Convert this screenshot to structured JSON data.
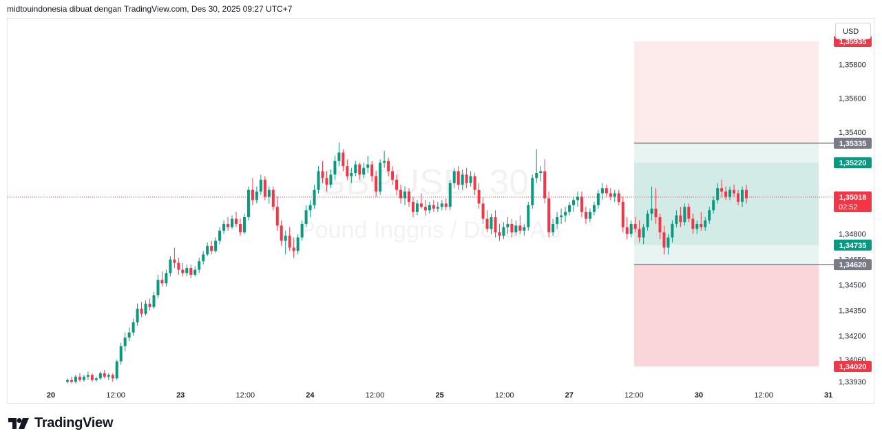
{
  "header": {
    "text": "midtouindonesia dibuat dengan TradingView.com, Des 30, 2025 09:27 UTC+7"
  },
  "currency": "USD",
  "brand": {
    "name": "TradingView"
  },
  "watermark": {
    "symbol": "GBPUSD, 30",
    "name": "Pound Inggris / Dollar AS"
  },
  "colors": {
    "up": "#089981",
    "down": "#f23645",
    "grid_border": "#e0e3eb",
    "stop_zone": "#fad6d9",
    "stop_zone_light": "#fdebec",
    "target_zone": "#d2ebe6",
    "target_zone_light": "#e8f4f1",
    "line_gray": "#434651",
    "gray_label": "#787b86"
  },
  "chart_data": {
    "type": "candlestick",
    "title": "",
    "xlabel": "",
    "ylabel": "",
    "ylim": [
      1.339,
      1.3601
    ],
    "x_ticks": [
      "20",
      "12:00",
      "23",
      "12:00",
      "24",
      "12:00",
      "25",
      "12:00",
      "27",
      "12:00",
      "30",
      "12:00",
      "31"
    ],
    "y_ticks": [
      "1,35800",
      "1,35600",
      "1,35400",
      "1,34800",
      "1,34650",
      "1,34500",
      "1,34350",
      "1,34200",
      "1,34060",
      "1,33930"
    ],
    "current_price": {
      "label": "1,35018",
      "value": 1.35018,
      "countdown": "02:52"
    },
    "price_labels": [
      {
        "label": "1,35935",
        "value": 1.35935,
        "style": "red"
      },
      {
        "label": "1,35335",
        "value": 1.35335,
        "style": "gray"
      },
      {
        "label": "1,35220",
        "value": 1.3522,
        "style": "green"
      },
      {
        "label": "1,34735",
        "value": 1.34735,
        "style": "green"
      },
      {
        "label": "1,34620",
        "value": 1.3462,
        "style": "gray"
      },
      {
        "label": "1,34020",
        "value": 1.3402,
        "style": "red"
      }
    ],
    "position_zone": {
      "start_tick_fraction": 9.0,
      "end_tick_fraction": 11.85,
      "top": 1.35935,
      "upper_line": 1.35335,
      "target_top": 1.3522,
      "target_bottom": 1.34735,
      "lower_line": 1.3462,
      "bottom": 1.3402
    },
    "candles": [
      [
        1.3393,
        1.3395,
        1.3392,
        1.3394
      ],
      [
        1.3394,
        1.3396,
        1.3392,
        1.3393
      ],
      [
        1.3393,
        1.3397,
        1.3392,
        1.3396
      ],
      [
        1.3396,
        1.3398,
        1.3393,
        1.3394
      ],
      [
        1.3394,
        1.3397,
        1.3393,
        1.3396
      ],
      [
        1.3396,
        1.3399,
        1.3394,
        1.3397
      ],
      [
        1.3397,
        1.3398,
        1.3393,
        1.3394
      ],
      [
        1.3394,
        1.3396,
        1.3393,
        1.3395
      ],
      [
        1.3395,
        1.3399,
        1.3394,
        1.3398
      ],
      [
        1.3398,
        1.34,
        1.3395,
        1.3396
      ],
      [
        1.3396,
        1.3398,
        1.3394,
        1.3397
      ],
      [
        1.3397,
        1.3398,
        1.3393,
        1.3395
      ],
      [
        1.3395,
        1.3406,
        1.3394,
        1.3405
      ],
      [
        1.3405,
        1.3416,
        1.3403,
        1.3414
      ],
      [
        1.3414,
        1.3422,
        1.3411,
        1.3419
      ],
      [
        1.3419,
        1.3425,
        1.3417,
        1.3422
      ],
      [
        1.3422,
        1.343,
        1.342,
        1.3428
      ],
      [
        1.3428,
        1.3439,
        1.3426,
        1.3436
      ],
      [
        1.3436,
        1.344,
        1.3431,
        1.3433
      ],
      [
        1.3433,
        1.3441,
        1.3432,
        1.3439
      ],
      [
        1.3439,
        1.3442,
        1.3435,
        1.3437
      ],
      [
        1.3437,
        1.3446,
        1.3436,
        1.3444
      ],
      [
        1.3444,
        1.3456,
        1.3442,
        1.3453
      ],
      [
        1.3453,
        1.3458,
        1.3449,
        1.3451
      ],
      [
        1.3451,
        1.3459,
        1.3449,
        1.3457
      ],
      [
        1.3457,
        1.3467,
        1.3455,
        1.3465
      ],
      [
        1.3465,
        1.3472,
        1.346,
        1.3463
      ],
      [
        1.3463,
        1.3466,
        1.3456,
        1.3459
      ],
      [
        1.3459,
        1.3463,
        1.3455,
        1.3457
      ],
      [
        1.3457,
        1.3462,
        1.3455,
        1.346
      ],
      [
        1.346,
        1.3462,
        1.3454,
        1.3456
      ],
      [
        1.3456,
        1.3461,
        1.3455,
        1.3459
      ],
      [
        1.3459,
        1.3466,
        1.3457,
        1.3464
      ],
      [
        1.3464,
        1.347,
        1.3462,
        1.3468
      ],
      [
        1.3468,
        1.3475,
        1.3467,
        1.3473
      ],
      [
        1.3473,
        1.3476,
        1.3468,
        1.347
      ],
      [
        1.347,
        1.3478,
        1.3469,
        1.3476
      ],
      [
        1.3476,
        1.3484,
        1.3474,
        1.3482
      ],
      [
        1.3482,
        1.3488,
        1.348,
        1.3486
      ],
      [
        1.3486,
        1.349,
        1.3482,
        1.3484
      ],
      [
        1.3484,
        1.3491,
        1.3483,
        1.3489
      ],
      [
        1.3489,
        1.3493,
        1.3484,
        1.3486
      ],
      [
        1.3486,
        1.3489,
        1.3479,
        1.3481
      ],
      [
        1.3481,
        1.3492,
        1.348,
        1.349
      ],
      [
        1.349,
        1.3508,
        1.3488,
        1.3506
      ],
      [
        1.3506,
        1.3513,
        1.3497,
        1.35
      ],
      [
        1.35,
        1.3508,
        1.3498,
        1.3505
      ],
      [
        1.3505,
        1.3515,
        1.3503,
        1.3512
      ],
      [
        1.3512,
        1.3514,
        1.35,
        1.3502
      ],
      [
        1.3502,
        1.3508,
        1.3498,
        1.3506
      ],
      [
        1.3506,
        1.3508,
        1.3494,
        1.3496
      ],
      [
        1.3496,
        1.3502,
        1.3482,
        1.3485
      ],
      [
        1.3485,
        1.3488,
        1.3473,
        1.3476
      ],
      [
        1.3476,
        1.3482,
        1.3468,
        1.3479
      ],
      [
        1.3479,
        1.3484,
        1.347,
        1.3472
      ],
      [
        1.3472,
        1.3478,
        1.3466,
        1.347
      ],
      [
        1.347,
        1.348,
        1.3468,
        1.3478
      ],
      [
        1.3478,
        1.3488,
        1.3476,
        1.3486
      ],
      [
        1.3486,
        1.3497,
        1.3484,
        1.3494
      ],
      [
        1.3494,
        1.35,
        1.349,
        1.3497
      ],
      [
        1.3497,
        1.3509,
        1.3495,
        1.3506
      ],
      [
        1.3506,
        1.352,
        1.3504,
        1.3517
      ],
      [
        1.3517,
        1.3523,
        1.351,
        1.3513
      ],
      [
        1.3513,
        1.3517,
        1.3505,
        1.3509
      ],
      [
        1.3509,
        1.3518,
        1.3507,
        1.3515
      ],
      [
        1.3515,
        1.3526,
        1.3512,
        1.3523
      ],
      [
        1.3523,
        1.3534,
        1.352,
        1.3528
      ],
      [
        1.3528,
        1.353,
        1.3517,
        1.352
      ],
      [
        1.352,
        1.3524,
        1.3512,
        1.3514
      ],
      [
        1.3514,
        1.3519,
        1.351,
        1.3516
      ],
      [
        1.3516,
        1.3523,
        1.3514,
        1.3521
      ],
      [
        1.3521,
        1.3522,
        1.3512,
        1.3515
      ],
      [
        1.3515,
        1.3522,
        1.3513,
        1.3519
      ],
      [
        1.3519,
        1.3526,
        1.3516,
        1.3521
      ],
      [
        1.3521,
        1.3523,
        1.3511,
        1.3514
      ],
      [
        1.3514,
        1.3517,
        1.3502,
        1.3505
      ],
      [
        1.3505,
        1.3524,
        1.3503,
        1.3522
      ],
      [
        1.3522,
        1.3529,
        1.3519,
        1.3523
      ],
      [
        1.3523,
        1.3525,
        1.3514,
        1.3517
      ],
      [
        1.3517,
        1.352,
        1.3509,
        1.3512
      ],
      [
        1.3512,
        1.3515,
        1.3503,
        1.3506
      ],
      [
        1.3506,
        1.3509,
        1.3498,
        1.3501
      ],
      [
        1.3501,
        1.3508,
        1.3497,
        1.3505
      ],
      [
        1.3505,
        1.3507,
        1.3496,
        1.3499
      ],
      [
        1.3499,
        1.3502,
        1.349,
        1.3493
      ],
      [
        1.3493,
        1.35,
        1.3491,
        1.3498
      ],
      [
        1.3498,
        1.3504,
        1.3495,
        1.3496
      ],
      [
        1.3496,
        1.35,
        1.3491,
        1.3494
      ],
      [
        1.3494,
        1.3499,
        1.3492,
        1.3497
      ],
      [
        1.3497,
        1.35,
        1.3493,
        1.3495
      ],
      [
        1.3495,
        1.3499,
        1.3493,
        1.3496
      ],
      [
        1.3496,
        1.35,
        1.3494,
        1.3498
      ],
      [
        1.3498,
        1.3501,
        1.3494,
        1.3496
      ],
      [
        1.3496,
        1.3512,
        1.3494,
        1.351
      ],
      [
        1.351,
        1.3519,
        1.3507,
        1.3517
      ],
      [
        1.3517,
        1.352,
        1.3506,
        1.3509
      ],
      [
        1.3509,
        1.3518,
        1.3506,
        1.3515
      ],
      [
        1.3515,
        1.3519,
        1.3507,
        1.351
      ],
      [
        1.351,
        1.3517,
        1.3508,
        1.3514
      ],
      [
        1.3514,
        1.3516,
        1.3503,
        1.3506
      ],
      [
        1.3506,
        1.351,
        1.3495,
        1.3498
      ],
      [
        1.3498,
        1.3502,
        1.3486,
        1.3489
      ],
      [
        1.3489,
        1.3494,
        1.3481,
        1.3483
      ],
      [
        1.3483,
        1.3492,
        1.348,
        1.349
      ],
      [
        1.349,
        1.3494,
        1.3478,
        1.3481
      ],
      [
        1.3481,
        1.3486,
        1.3476,
        1.3479
      ],
      [
        1.3479,
        1.3487,
        1.3477,
        1.3484
      ],
      [
        1.3484,
        1.349,
        1.348,
        1.3486
      ],
      [
        1.3486,
        1.3489,
        1.3478,
        1.3481
      ],
      [
        1.3481,
        1.3488,
        1.3479,
        1.3485
      ],
      [
        1.3485,
        1.3491,
        1.348,
        1.3482
      ],
      [
        1.3482,
        1.3486,
        1.3479,
        1.3484
      ],
      [
        1.3484,
        1.3499,
        1.3482,
        1.3497
      ],
      [
        1.3497,
        1.3515,
        1.3495,
        1.3513
      ],
      [
        1.3513,
        1.353,
        1.351,
        1.3516
      ],
      [
        1.3516,
        1.352,
        1.3511,
        1.3517
      ],
      [
        1.3517,
        1.3524,
        1.3498,
        1.3501
      ],
      [
        1.3501,
        1.3505,
        1.3478,
        1.3481
      ],
      [
        1.3481,
        1.3489,
        1.3479,
        1.3486
      ],
      [
        1.3486,
        1.3493,
        1.3483,
        1.349
      ],
      [
        1.349,
        1.3495,
        1.3486,
        1.3491
      ],
      [
        1.3491,
        1.3496,
        1.3487,
        1.3493
      ],
      [
        1.3493,
        1.3499,
        1.3491,
        1.3497
      ],
      [
        1.3497,
        1.3502,
        1.3493,
        1.35
      ],
      [
        1.35,
        1.3505,
        1.3496,
        1.3502
      ],
      [
        1.3502,
        1.3505,
        1.349,
        1.3493
      ],
      [
        1.3493,
        1.3496,
        1.3486,
        1.3489
      ],
      [
        1.3489,
        1.3495,
        1.3487,
        1.3493
      ],
      [
        1.3493,
        1.3499,
        1.3491,
        1.3497
      ],
      [
        1.3497,
        1.3506,
        1.3495,
        1.3504
      ],
      [
        1.3504,
        1.351,
        1.35,
        1.3507
      ],
      [
        1.3507,
        1.3509,
        1.3502,
        1.3504
      ],
      [
        1.3504,
        1.3507,
        1.35,
        1.3502
      ],
      [
        1.3502,
        1.3506,
        1.3499,
        1.3504
      ],
      [
        1.3504,
        1.3506,
        1.3497,
        1.3499
      ],
      [
        1.3499,
        1.3502,
        1.3481,
        1.3484
      ],
      [
        1.3484,
        1.349,
        1.3477,
        1.348
      ],
      [
        1.348,
        1.3488,
        1.3478,
        1.3486
      ],
      [
        1.3486,
        1.349,
        1.3481,
        1.3483
      ],
      [
        1.3483,
        1.3488,
        1.3475,
        1.3478
      ],
      [
        1.3478,
        1.3486,
        1.3474,
        1.3484
      ],
      [
        1.3484,
        1.3494,
        1.3482,
        1.3492
      ],
      [
        1.3492,
        1.3508,
        1.3488,
        1.3495
      ],
      [
        1.3495,
        1.3507,
        1.3486,
        1.349
      ],
      [
        1.349,
        1.3492,
        1.3477,
        1.3481
      ],
      [
        1.3481,
        1.3485,
        1.3468,
        1.3472
      ],
      [
        1.3472,
        1.348,
        1.3468,
        1.3478
      ],
      [
        1.3478,
        1.3488,
        1.3475,
        1.3486
      ],
      [
        1.3486,
        1.3494,
        1.3484,
        1.3491
      ],
      [
        1.3491,
        1.3496,
        1.3484,
        1.3487
      ],
      [
        1.3487,
        1.3498,
        1.3485,
        1.3496
      ],
      [
        1.3496,
        1.3498,
        1.3487,
        1.3489
      ],
      [
        1.3489,
        1.3492,
        1.348,
        1.3483
      ],
      [
        1.3483,
        1.3488,
        1.348,
        1.3486
      ],
      [
        1.3486,
        1.3493,
        1.3482,
        1.3484
      ],
      [
        1.3484,
        1.349,
        1.3482,
        1.3488
      ],
      [
        1.3488,
        1.3496,
        1.3486,
        1.3494
      ],
      [
        1.3494,
        1.3502,
        1.3492,
        1.35
      ],
      [
        1.35,
        1.351,
        1.3498,
        1.3507
      ],
      [
        1.3507,
        1.3512,
        1.3502,
        1.3505
      ],
      [
        1.3505,
        1.3508,
        1.35,
        1.3502
      ],
      [
        1.3502,
        1.3508,
        1.35,
        1.3506
      ],
      [
        1.3506,
        1.3509,
        1.3502,
        1.3504
      ],
      [
        1.3504,
        1.3506,
        1.3497,
        1.3499
      ],
      [
        1.3499,
        1.3508,
        1.3496,
        1.3506
      ],
      [
        1.3506,
        1.3509,
        1.3498,
        1.3501
      ]
    ]
  }
}
